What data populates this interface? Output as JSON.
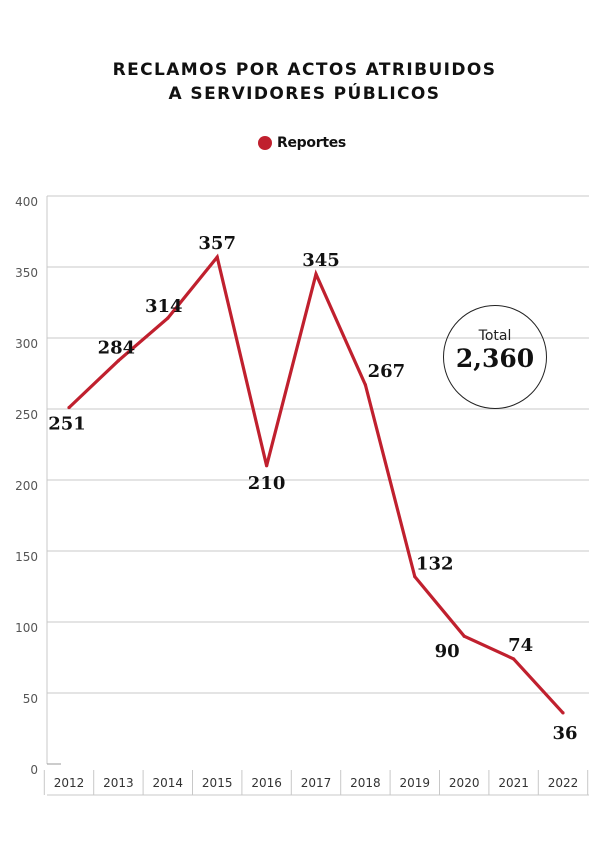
{
  "title_lines": [
    "RECLAMOS POR ACTOS ATRIBUIDOS",
    "A SERVIDORES PÚBLICOS"
  ],
  "legend": {
    "label": "Reportes"
  },
  "total": {
    "label": "Total",
    "value": "2,360"
  },
  "colors": {
    "series": "#c0202e",
    "grid": "#c8c8c8",
    "text": "#111111"
  },
  "chart_data": {
    "type": "line",
    "title": "RECLAMOS POR ACTOS ATRIBUIDOS A SERVIDORES PÚBLICOS",
    "xlabel": "",
    "ylabel": "",
    "categories": [
      "2012",
      "2013",
      "2014",
      "2015",
      "2016",
      "2017",
      "2018",
      "2019",
      "2020",
      "2021",
      "2022"
    ],
    "series": [
      {
        "name": "Reportes",
        "values": [
          251,
          284,
          314,
          357,
          210,
          345,
          267,
          132,
          90,
          74,
          36
        ]
      }
    ],
    "ylim": [
      0,
      400
    ],
    "yticks": [
      0,
      50,
      100,
      150,
      200,
      250,
      300,
      350,
      400
    ],
    "grid": true,
    "legend_position": "top-center",
    "data_labels": [
      "251",
      "284",
      "314",
      "357",
      "210",
      "345",
      "267",
      "132",
      "90",
      "74",
      "36"
    ]
  }
}
